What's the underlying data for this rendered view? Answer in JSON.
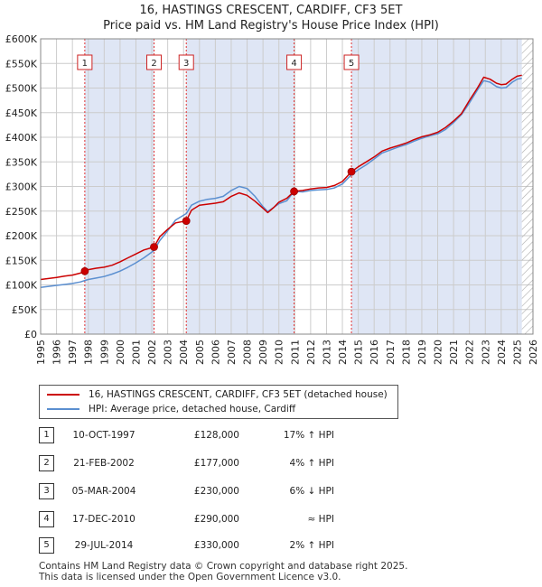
{
  "title_line1": "16, HASTINGS CRESCENT, CARDIFF, CF3 5ET",
  "title_line2": "Price paid vs. HM Land Registry's House Price Index (HPI)",
  "colors": {
    "property": "#cc0000",
    "hpi": "#5b8fd0",
    "shade": "#dfe6f5",
    "grid": "#cccccc",
    "vline": "#e03030",
    "hatch": "#999999"
  },
  "legend": {
    "property": "16, HASTINGS CRESCENT, CARDIFF, CF3 5ET (detached house)",
    "hpi": "HPI: Average price, detached house, Cardiff"
  },
  "transactions": [
    {
      "num": "1",
      "date": "10-OCT-1997",
      "price": "£128,000",
      "hpi": "17% ↑ HPI"
    },
    {
      "num": "2",
      "date": "21-FEB-2002",
      "price": "£177,000",
      "hpi": "4% ↑ HPI"
    },
    {
      "num": "3",
      "date": "05-MAR-2004",
      "price": "£230,000",
      "hpi": "6% ↓ HPI"
    },
    {
      "num": "4",
      "date": "17-DEC-2010",
      "price": "£290,000",
      "hpi": "≈ HPI"
    },
    {
      "num": "5",
      "date": "29-JUL-2014",
      "price": "£330,000",
      "hpi": "2% ↑ HPI"
    }
  ],
  "footer_line1": "Contains HM Land Registry data © Crown copyright and database right 2025.",
  "footer_line2": "This data is licensed under the Open Government Licence v3.0.",
  "chart_data": {
    "type": "line",
    "title": "16, HASTINGS CRESCENT, CARDIFF, CF3 5ET — Price paid vs. HM Land Registry's House Price Index (HPI)",
    "xlabel": "",
    "ylabel": "",
    "xlim": [
      1995,
      2026
    ],
    "ylim": [
      0,
      600000
    ],
    "x_ticks": [
      "1995",
      "1996",
      "1997",
      "1998",
      "1999",
      "2000",
      "2001",
      "2002",
      "2003",
      "2004",
      "2005",
      "2006",
      "2007",
      "2008",
      "2009",
      "2010",
      "2011",
      "2012",
      "2013",
      "2014",
      "2015",
      "2016",
      "2017",
      "2018",
      "2019",
      "2020",
      "2021",
      "2022",
      "2023",
      "2024",
      "2025",
      "2026"
    ],
    "y_ticks": [
      "£0",
      "£50K",
      "£100K",
      "£150K",
      "£200K",
      "£250K",
      "£300K",
      "£350K",
      "£400K",
      "£450K",
      "£500K",
      "£550K",
      "£600K"
    ],
    "shaded_ranges": [
      [
        1997.78,
        2002.14
      ],
      [
        2004.17,
        2010.96
      ],
      [
        2014.57,
        2025.3
      ]
    ],
    "forecast_start": 2025.3,
    "sales": [
      {
        "label": "1",
        "x": 1997.78,
        "y": 128000
      },
      {
        "label": "2",
        "x": 2002.14,
        "y": 177000
      },
      {
        "label": "3",
        "x": 2004.17,
        "y": 230000
      },
      {
        "label": "4",
        "x": 2010.96,
        "y": 290000
      },
      {
        "label": "5",
        "x": 2014.57,
        "y": 330000
      }
    ],
    "series": [
      {
        "name": "16, HASTINGS CRESCENT, CARDIFF, CF3 5ET (detached house)",
        "x": [
          1995.0,
          1995.5,
          1996.0,
          1996.5,
          1997.0,
          1997.5,
          1997.78,
          1998.0,
          1998.5,
          1999.0,
          1999.5,
          2000.0,
          2000.5,
          2001.0,
          2001.5,
          2002.14,
          2002.5,
          2003.0,
          2003.5,
          2004.17,
          2004.5,
          2005.0,
          2005.5,
          2006.0,
          2006.5,
          2007.0,
          2007.5,
          2008.0,
          2008.5,
          2009.0,
          2009.3,
          2009.7,
          2010.0,
          2010.5,
          2010.96,
          2011.5,
          2012.0,
          2012.5,
          2013.0,
          2013.5,
          2014.0,
          2014.57,
          2015.0,
          2015.5,
          2016.0,
          2016.5,
          2017.0,
          2017.5,
          2018.0,
          2018.5,
          2019.0,
          2019.5,
          2020.0,
          2020.5,
          2021.0,
          2021.5,
          2022.0,
          2022.5,
          2022.9,
          2023.3,
          2023.7,
          2024.0,
          2024.3,
          2024.7,
          2025.0,
          2025.3
        ],
        "y": [
          111000,
          113000,
          115000,
          118000,
          120000,
          124000,
          128000,
          131000,
          134000,
          136000,
          140000,
          147000,
          155000,
          163000,
          171000,
          177000,
          198000,
          213000,
          226000,
          230000,
          252000,
          262000,
          264000,
          266000,
          269000,
          280000,
          287000,
          282000,
          270000,
          256000,
          247000,
          258000,
          268000,
          276000,
          290000,
          292000,
          295000,
          297000,
          298000,
          302000,
          310000,
          330000,
          340000,
          350000,
          360000,
          372000,
          378000,
          383000,
          388000,
          395000,
          401000,
          405000,
          410000,
          420000,
          433000,
          448000,
          475000,
          500000,
          522000,
          518000,
          510000,
          507000,
          508000,
          518000,
          524000,
          526000
        ]
      },
      {
        "name": "HPI: Average price, detached house, Cardiff",
        "x": [
          1995.0,
          1995.5,
          1996.0,
          1996.5,
          1997.0,
          1997.5,
          1997.78,
          1998.0,
          1998.5,
          1999.0,
          1999.5,
          2000.0,
          2000.5,
          2001.0,
          2001.5,
          2002.14,
          2002.5,
          2003.0,
          2003.5,
          2004.17,
          2004.5,
          2005.0,
          2005.5,
          2006.0,
          2006.5,
          2007.0,
          2007.5,
          2008.0,
          2008.5,
          2009.0,
          2009.3,
          2009.7,
          2010.0,
          2010.5,
          2010.96,
          2011.5,
          2012.0,
          2012.5,
          2013.0,
          2013.5,
          2014.0,
          2014.57,
          2015.0,
          2015.5,
          2016.0,
          2016.5,
          2017.0,
          2017.5,
          2018.0,
          2018.5,
          2019.0,
          2019.5,
          2020.0,
          2020.5,
          2021.0,
          2021.5,
          2022.0,
          2022.5,
          2022.9,
          2023.3,
          2023.7,
          2024.0,
          2024.3,
          2024.7,
          2025.0,
          2025.3
        ],
        "y": [
          95000,
          97000,
          99000,
          101000,
          103000,
          106000,
          109000,
          111000,
          114000,
          117000,
          122000,
          128000,
          136000,
          145000,
          155000,
          170000,
          190000,
          210000,
          232000,
          245000,
          262000,
          270000,
          274000,
          276000,
          280000,
          292000,
          300000,
          296000,
          280000,
          259000,
          249000,
          258000,
          265000,
          271000,
          290000,
          289000,
          292000,
          293000,
          294000,
          297000,
          305000,
          324000,
          334000,
          344000,
          356000,
          368000,
          374000,
          380000,
          385000,
          392000,
          398000,
          403000,
          407000,
          416000,
          430000,
          446000,
          470000,
          496000,
          515000,
          512000,
          503000,
          500000,
          501000,
          512000,
          518000,
          520000
        ]
      }
    ]
  }
}
